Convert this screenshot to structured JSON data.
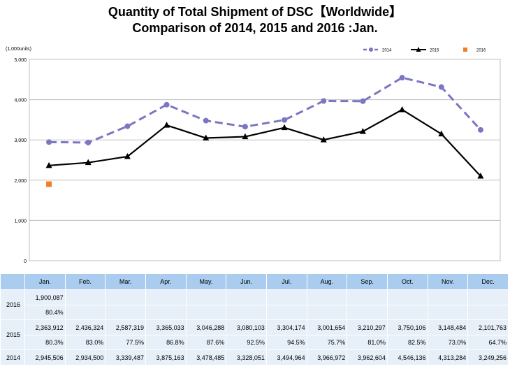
{
  "title_line1": "Quantity of Total Shipment of DSC【Worldwide】",
  "title_line2": "Comparison of 2014, 2015 and 2016 :Jan.",
  "unit_label": "(1,000units)",
  "colors": {
    "s2014": "#7b76c2",
    "s2015": "#000000",
    "s2016": "#f07e26",
    "header": "#a9ccef",
    "row": "#e7eff8",
    "grid": "#bfbfbf"
  },
  "chart_data": {
    "type": "line",
    "categories": [
      "Jan.",
      "Feb.",
      "Mar.",
      "Apr.",
      "May.",
      "Jun.",
      "Jul.",
      "Aug.",
      "Sep.",
      "Oct.",
      "Nov.",
      "Dec."
    ],
    "ylim": [
      0,
      5000
    ],
    "yticks": [
      "0",
      "1,000",
      "2,000",
      "3,000",
      "4,000",
      "5,000"
    ],
    "grid": true,
    "legend_position": "top-right",
    "series": [
      {
        "name": "2014",
        "style": "dashed",
        "marker": "circle",
        "values": [
          2945.506,
          2934.5,
          3339.487,
          3875.163,
          3478.485,
          3328.051,
          3494.964,
          3966.972,
          3962.604,
          4546.136,
          4313.284,
          3249.256
        ]
      },
      {
        "name": "2015",
        "style": "solid",
        "marker": "triangle",
        "values": [
          2363.912,
          2436.324,
          2587.319,
          3365.033,
          3046.288,
          3080.103,
          3304.174,
          3001.654,
          3210.297,
          3750.106,
          3148.484,
          2101.763
        ]
      },
      {
        "name": "2016",
        "style": "none",
        "marker": "square",
        "values": [
          1900.087,
          null,
          null,
          null,
          null,
          null,
          null,
          null,
          null,
          null,
          null,
          null
        ]
      }
    ]
  },
  "table": {
    "months": [
      "Jan.",
      "Feb.",
      "Mar.",
      "Apr.",
      "May.",
      "Jun.",
      "Jul.",
      "Aug.",
      "Sep.",
      "Oct.",
      "Nov.",
      "Dec."
    ],
    "rows": [
      {
        "year": "2016",
        "values": [
          "1,900,087",
          "",
          "",
          "",
          "",
          "",
          "",
          "",
          "",
          "",
          "",
          ""
        ],
        "pct": [
          "80.4%",
          "",
          "",
          "",
          "",
          "",
          "",
          "",
          "",
          "",
          "",
          ""
        ]
      },
      {
        "year": "2015",
        "values": [
          "2,363,912",
          "2,436,324",
          "2,587,319",
          "3,365,033",
          "3,046,288",
          "3,080,103",
          "3,304,174",
          "3,001,654",
          "3,210,297",
          "3,750,106",
          "3,148,484",
          "2,101,763"
        ],
        "pct": [
          "80.3%",
          "83.0%",
          "77.5%",
          "86.8%",
          "87.6%",
          "92.5%",
          "94.5%",
          "75.7%",
          "81.0%",
          "82.5%",
          "73.0%",
          "64.7%"
        ]
      },
      {
        "year": "2014",
        "values": [
          "2,945,506",
          "2,934,500",
          "3,339,487",
          "3,875,163",
          "3,478,485",
          "3,328,051",
          "3,494,964",
          "3,966,972",
          "3,962,604",
          "4,546,136",
          "4,313,284",
          "3,249,256"
        ],
        "pct": null
      }
    ]
  }
}
